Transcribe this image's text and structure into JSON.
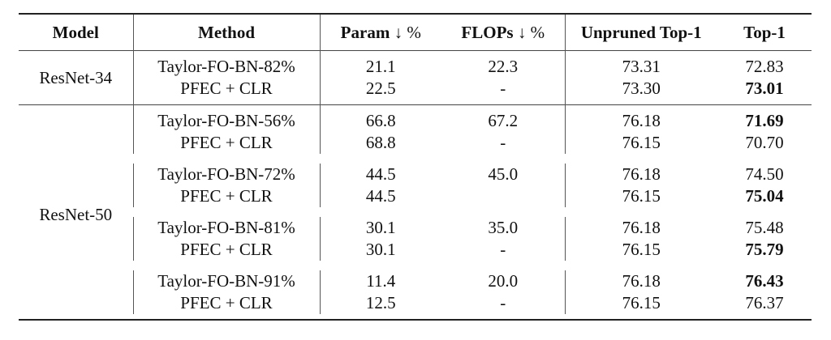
{
  "header": {
    "model": "Model",
    "method": "Method",
    "param": "Param",
    "param_arrow": "↓ %",
    "flops": "FLOPs",
    "flops_arrow": "↓ %",
    "unpruned": "Unpruned Top-1",
    "top1": "Top-1"
  },
  "groups": [
    {
      "model": "ResNet-34",
      "rows": [
        {
          "method": "Taylor-FO-BN-82%",
          "param": "21.1",
          "flops": "22.3",
          "unpruned": "73.31",
          "top1": "72.83",
          "bold": false
        },
        {
          "method": "PFEC + CLR",
          "param": "22.5",
          "flops": "-",
          "unpruned": "73.30",
          "top1": "73.01",
          "bold": true
        }
      ]
    },
    {
      "model": "ResNet-50",
      "rows": [
        {
          "method": "Taylor-FO-BN-56%",
          "param": "66.8",
          "flops": "67.2",
          "unpruned": "76.18",
          "top1": "71.69",
          "bold": true
        },
        {
          "method": "PFEC + CLR",
          "param": "68.8",
          "flops": "-",
          "unpruned": "76.15",
          "top1": "70.70",
          "bold": false
        },
        {
          "method": "Taylor-FO-BN-72%",
          "param": "44.5",
          "flops": "45.0",
          "unpruned": "76.18",
          "top1": "74.50",
          "bold": false
        },
        {
          "method": "PFEC + CLR",
          "param": "44.5",
          "flops": "",
          "unpruned": "76.15",
          "top1": "75.04",
          "bold": true
        },
        {
          "method": "Taylor-FO-BN-81%",
          "param": "30.1",
          "flops": "35.0",
          "unpruned": "76.18",
          "top1": "75.48",
          "bold": false
        },
        {
          "method": "PFEC + CLR",
          "param": "30.1",
          "flops": "-",
          "unpruned": "76.15",
          "top1": "75.79",
          "bold": true
        },
        {
          "method": "Taylor-FO-BN-91%",
          "param": "11.4",
          "flops": "20.0",
          "unpruned": "76.18",
          "top1": "76.43",
          "bold": true
        },
        {
          "method": "PFEC + CLR",
          "param": "12.5",
          "flops": "-",
          "unpruned": "76.15",
          "top1": "76.37",
          "bold": false
        }
      ]
    }
  ]
}
